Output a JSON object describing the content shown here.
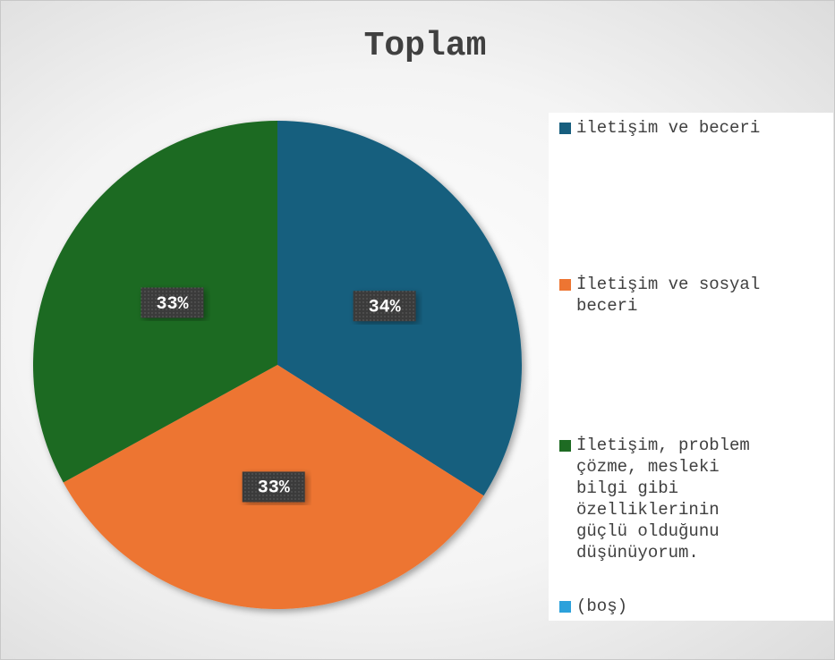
{
  "chart_data": {
    "type": "pie",
    "title": "Toplam",
    "categories": [
      "iletişim ve beceri",
      "İletişim ve sosyal beceri",
      "İletişim, problem çözme, mesleki bilgi gibi özelliklerinin güçlü olduğunu düşünüyorum.",
      "(boş)"
    ],
    "values": [
      34,
      33,
      33,
      0
    ],
    "value_labels": [
      "34%",
      "33%",
      "33%",
      null
    ],
    "colors": [
      "#175e7e",
      "#ed7532",
      "#1e6b23",
      "#2ca1db"
    ],
    "legend": "right"
  }
}
